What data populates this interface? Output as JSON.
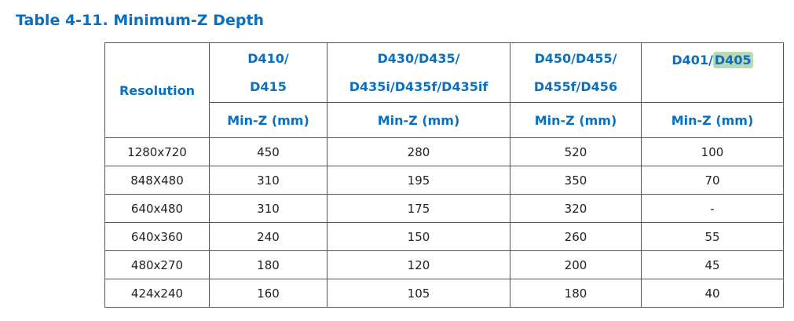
{
  "caption": "Table 4-11. Minimum-Z Depth",
  "table": {
    "resolution_header": "Resolution",
    "model_headers": [
      {
        "line1": "D410/",
        "line2": "D415"
      },
      {
        "line1": "D430/D435/",
        "line2": "D435i/D435f/D435if"
      },
      {
        "line1": "D450/D455/",
        "line2": "D455f/D456"
      },
      {
        "prefix": "D401/",
        "highlight": "D405"
      }
    ],
    "unit_header": "Min-Z (mm)",
    "rows": [
      {
        "resolution": "1280x720",
        "values": [
          "450",
          "280",
          "520",
          "100"
        ]
      },
      {
        "resolution": "848X480",
        "values": [
          "310",
          "195",
          "350",
          "70"
        ]
      },
      {
        "resolution": "640x480",
        "values": [
          "310",
          "175",
          "320",
          "-"
        ]
      },
      {
        "resolution": "640x360",
        "values": [
          "240",
          "150",
          "260",
          "55"
        ]
      },
      {
        "resolution": "480x270",
        "values": [
          "180",
          "120",
          "200",
          "45"
        ]
      },
      {
        "resolution": "424x240",
        "values": [
          "160",
          "105",
          "180",
          "40"
        ]
      }
    ]
  },
  "colors": {
    "heading_blue": "#0b6fc0",
    "highlight": "#b8d8b8",
    "border": "#555555"
  }
}
